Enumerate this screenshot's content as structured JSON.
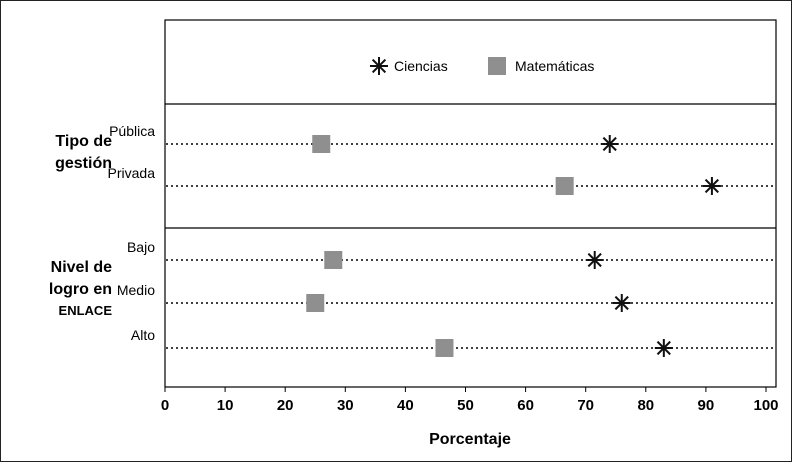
{
  "chart_data": {
    "type": "scatter",
    "xlabel": "Porcentaje",
    "xlim": [
      0,
      100
    ],
    "xticks": [
      "0",
      "10",
      "20",
      "30",
      "40",
      "50",
      "60",
      "70",
      "80",
      "90",
      "100"
    ],
    "legend_placement": "top-center",
    "grid": "dotted horizontal guide per category",
    "groups": [
      {
        "label_lines": [
          "Tipo de",
          "gestión"
        ],
        "categories": [
          "Pública",
          "Privada"
        ]
      },
      {
        "label_lines": [
          "Nivel de",
          "logro en",
          "ENLACE"
        ],
        "categories": [
          "Bajo",
          "Medio",
          "Alto"
        ]
      }
    ],
    "categories": [
      "Pública",
      "Privada",
      "Bajo",
      "Medio",
      "Alto"
    ],
    "series": [
      {
        "name": "Ciencias",
        "marker": "asterisk",
        "color": "#111111",
        "values": [
          74,
          91,
          71.5,
          76,
          83
        ]
      },
      {
        "name": "Matemáticas",
        "marker": "square",
        "color": "#8f8f8f",
        "values": [
          26,
          66.5,
          28,
          25,
          46.5
        ]
      }
    ]
  }
}
